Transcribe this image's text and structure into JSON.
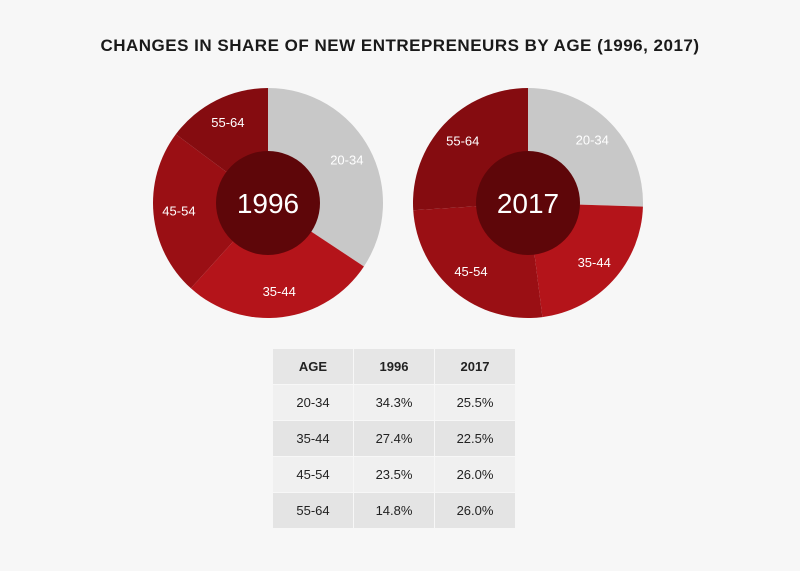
{
  "chart_data": {
    "type": "pie",
    "title": "CHANGES IN SHARE OF NEW ENTREPRENEURS BY AGE (1996, 2017)",
    "categories": [
      "20-34",
      "35-44",
      "45-54",
      "55-64"
    ],
    "colors": [
      "#c8c8c8",
      "#b4141a",
      "#9a0f14",
      "#850c10"
    ],
    "center_color": "#5e0609",
    "series": [
      {
        "name": "1996",
        "values": [
          34.3,
          27.4,
          23.5,
          14.8
        ]
      },
      {
        "name": "2017",
        "values": [
          25.5,
          22.5,
          26.0,
          26.0
        ]
      }
    ]
  },
  "table": {
    "headers": [
      "AGE",
      "1996",
      "2017"
    ],
    "rows": [
      [
        "20-34",
        "34.3%",
        "25.5%"
      ],
      [
        "35-44",
        "27.4%",
        "22.5%"
      ],
      [
        "45-54",
        "23.5%",
        "26.0%"
      ],
      [
        "55-64",
        "14.8%",
        "26.0%"
      ]
    ]
  }
}
